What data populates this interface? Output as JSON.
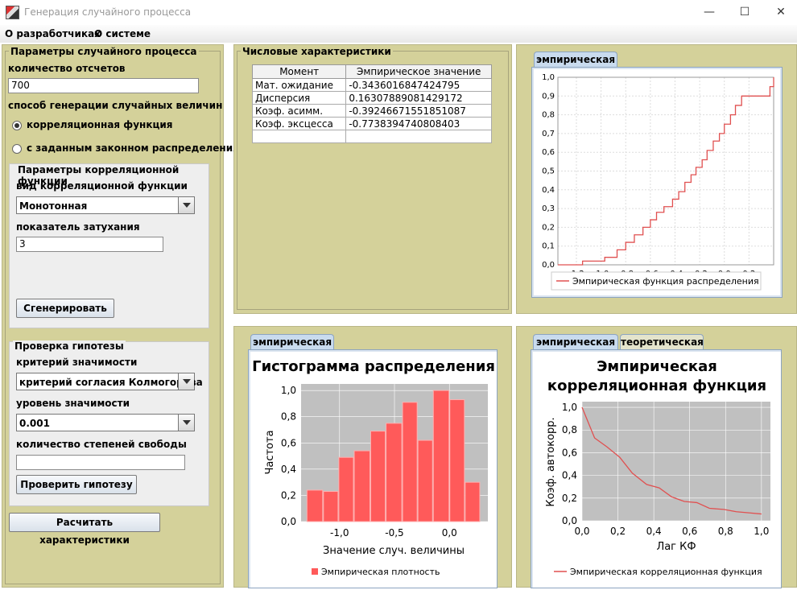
{
  "window": {
    "title": "Генерация случайного процесса",
    "minimize": "—",
    "maximize": "☐",
    "close": "✕"
  },
  "menu": {
    "developers": "О разработчиках",
    "about": "О системе"
  },
  "params": {
    "title": "Параметры случайного процесса",
    "count_label": "количество отсчетов",
    "count_value": "700",
    "method_label": "способ генерации случайных величин",
    "radio_corr": "корреляционная функция",
    "radio_dist": "с заданным законном распределения",
    "corr_group_title": "Параметры корреляционной функции",
    "corr_type_label": "вид корреляционной функции",
    "corr_type_value": "Монотонная",
    "decay_label": "показатель затухания",
    "decay_value": "3",
    "generate_button": "Сгенерировать"
  },
  "hypothesis": {
    "title": "Проверка гипотезы",
    "criterion_label": "критерий значимости",
    "criterion_value": "критерий согласия Колмогорова",
    "level_label": "уровень значимости",
    "level_value": "0.001",
    "dof_label": "количество степеней свободы",
    "dof_value": "",
    "check_button": "Проверить гипотезу"
  },
  "calc_button": "Расчитать характеристики",
  "stats": {
    "title": "Числовые характеристики",
    "headers": [
      "Момент",
      "Эмпирическое значение"
    ],
    "rows": [
      [
        "Мат. ожидание",
        "-0.3436016847424795"
      ],
      [
        "Дисперсия",
        "0.16307889081429172"
      ],
      [
        "Коэф. асимм.",
        "-0.39246671551851087"
      ],
      [
        "Коэф. эксцесса",
        "-0.7738394740808403"
      ]
    ]
  },
  "colors": {
    "panel": "#d4d19a",
    "series": "#e05050",
    "bar": "#ff5a5a",
    "plot_bg": "#c0c0c0"
  },
  "tabs": {
    "empirical": "эмпирическая",
    "theoretical": "теоретическая"
  },
  "chart_data": [
    {
      "type": "line",
      "title": "",
      "xlabel": "",
      "ylabel": "",
      "xlim": [
        -1.35,
        0.4
      ],
      "ylim": [
        0,
        1.0
      ],
      "xticks": [
        "-1,2",
        "-1,0",
        "-0,8",
        "-0,6",
        "-0,4",
        "-0,2",
        "0,0",
        "0,2"
      ],
      "yticks": [
        "0,0",
        "0,1",
        "0,2",
        "0,3",
        "0,4",
        "0,5",
        "0,6",
        "0,7",
        "0,8",
        "0,9",
        "1,0"
      ],
      "grid": true,
      "legend": "bottom",
      "series": [
        {
          "name": "Эмпирическая функция распределения",
          "step": true,
          "x": [
            -1.35,
            -1.15,
            -0.97,
            -0.87,
            -0.8,
            -0.73,
            -0.66,
            -0.6,
            -0.55,
            -0.49,
            -0.42,
            -0.37,
            -0.32,
            -0.27,
            -0.23,
            -0.18,
            -0.14,
            -0.09,
            -0.04,
            0.0,
            0.05,
            0.09,
            0.14,
            0.37,
            0.4
          ],
          "y": [
            0.0,
            0.02,
            0.04,
            0.08,
            0.12,
            0.16,
            0.2,
            0.24,
            0.28,
            0.31,
            0.35,
            0.39,
            0.44,
            0.48,
            0.52,
            0.56,
            0.61,
            0.66,
            0.7,
            0.75,
            0.8,
            0.85,
            0.9,
            0.95,
            1.0
          ]
        }
      ]
    },
    {
      "type": "bar",
      "title": "Гистограмма распределения",
      "xlabel": "Значение случ. величины",
      "ylabel": "Частота",
      "xlim": [
        -1.35,
        0.35
      ],
      "ylim": [
        0,
        1.05
      ],
      "xticks": [
        "-1,0",
        "-0,5",
        "0,0"
      ],
      "yticks": [
        "0,0",
        "0,2",
        "0,4",
        "0,6",
        "0,8",
        "1,0"
      ],
      "legend": "bottom",
      "series": [
        {
          "name": "Эмпирическая плотность",
          "bins": [
            [
              -1.3,
              -1.15
            ],
            [
              -1.15,
              -1.01
            ],
            [
              -1.01,
              -0.87
            ],
            [
              -0.87,
              -0.72
            ],
            [
              -0.72,
              -0.58
            ],
            [
              -0.58,
              -0.43
            ],
            [
              -0.43,
              -0.29
            ],
            [
              -0.29,
              -0.15
            ],
            [
              -0.15,
              0.0
            ],
            [
              0.0,
              0.14
            ],
            [
              0.14,
              0.28
            ]
          ],
          "values": [
            0.24,
            0.23,
            0.49,
            0.54,
            0.69,
            0.75,
            0.91,
            0.62,
            1.0,
            0.93,
            0.3
          ]
        }
      ]
    },
    {
      "type": "line",
      "title": "Эмпирическая корреляционная функция",
      "xlabel": "Лаг КФ",
      "ylabel": "Коэф. автокорр.",
      "xlim": [
        0,
        1.05
      ],
      "ylim": [
        0,
        1.05
      ],
      "xticks": [
        "0,0",
        "0,2",
        "0,4",
        "0,6",
        "0,8",
        "1,0"
      ],
      "yticks": [
        "0,0",
        "0,2",
        "0,4",
        "0,6",
        "0,8",
        "1,0"
      ],
      "legend": "bottom",
      "series": [
        {
          "name": "Эмпирическая корреляционная функция",
          "x": [
            0.0,
            0.07,
            0.14,
            0.21,
            0.28,
            0.36,
            0.43,
            0.5,
            0.57,
            0.64,
            0.71,
            0.79,
            0.86,
            0.93,
            1.0
          ],
          "y": [
            1.0,
            0.73,
            0.65,
            0.56,
            0.42,
            0.32,
            0.29,
            0.21,
            0.17,
            0.16,
            0.11,
            0.1,
            0.08,
            0.07,
            0.06
          ]
        }
      ]
    }
  ]
}
